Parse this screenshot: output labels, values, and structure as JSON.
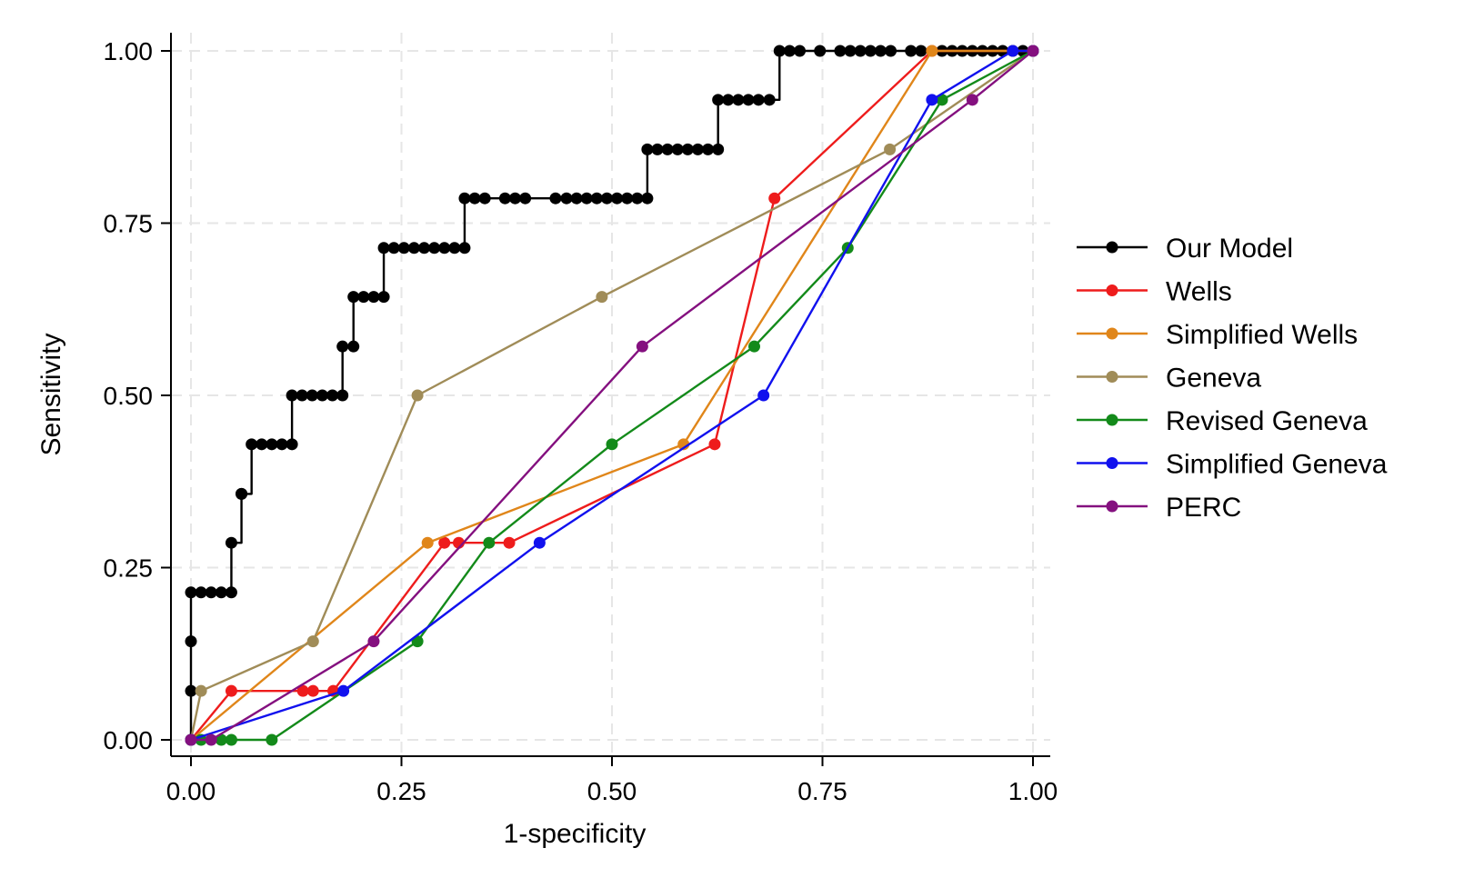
{
  "chart_data": {
    "type": "line",
    "xlabel": "1-specificity",
    "ylabel": "Sensitivity",
    "xlim": [
      0,
      1
    ],
    "ylim": [
      0,
      1
    ],
    "xticks": [
      "0.00",
      "0.25",
      "0.50",
      "0.75",
      "1.00"
    ],
    "yticks": [
      "0.00",
      "0.25",
      "0.50",
      "0.75",
      "1.00"
    ],
    "grid": true,
    "legend_position": "right",
    "series": [
      {
        "name": "Our Model",
        "color": "#000000",
        "step": true,
        "x": [
          0,
          0,
          0,
          0,
          0.012,
          0.024,
          0.036,
          0.048,
          0.048,
          0.06,
          0.06,
          0.072,
          0.084,
          0.096,
          0.108,
          0.12,
          0.12,
          0.132,
          0.144,
          0.156,
          0.168,
          0.18,
          0.18,
          0.193,
          0.193,
          0.205,
          0.217,
          0.229,
          0.229,
          0.241,
          0.253,
          0.265,
          0.277,
          0.289,
          0.301,
          0.313,
          0.325,
          0.325,
          0.337,
          0.349,
          0.373,
          0.385,
          0.397,
          0.433,
          0.446,
          0.458,
          0.47,
          0.482,
          0.494,
          0.506,
          0.518,
          0.53,
          0.542,
          0.542,
          0.554,
          0.566,
          0.578,
          0.59,
          0.602,
          0.614,
          0.626,
          0.626,
          0.638,
          0.65,
          0.662,
          0.674,
          0.687,
          0.699,
          0.711,
          0.723,
          0.747,
          0.771,
          0.783,
          0.795,
          0.807,
          0.819,
          0.831,
          0.855,
          0.867,
          0.892,
          0.904,
          0.916,
          0.928,
          0.94,
          0.952,
          0.964,
          0.976,
          0.988,
          1
        ],
        "y": [
          0,
          0.071,
          0.143,
          0.214,
          0.214,
          0.214,
          0.214,
          0.214,
          0.286,
          0.357,
          0.357,
          0.429,
          0.429,
          0.429,
          0.429,
          0.429,
          0.5,
          0.5,
          0.5,
          0.5,
          0.5,
          0.5,
          0.571,
          0.571,
          0.643,
          0.643,
          0.643,
          0.643,
          0.714,
          0.714,
          0.714,
          0.714,
          0.714,
          0.714,
          0.714,
          0.714,
          0.714,
          0.786,
          0.786,
          0.786,
          0.786,
          0.786,
          0.786,
          0.786,
          0.786,
          0.786,
          0.786,
          0.786,
          0.786,
          0.786,
          0.786,
          0.786,
          0.786,
          0.857,
          0.857,
          0.857,
          0.857,
          0.857,
          0.857,
          0.857,
          0.857,
          0.929,
          0.929,
          0.929,
          0.929,
          0.929,
          0.929,
          1,
          1,
          1,
          1,
          1,
          1,
          1,
          1,
          1,
          1,
          1,
          1,
          1,
          1,
          1,
          1,
          1,
          1,
          1,
          1,
          1,
          1
        ]
      },
      {
        "name": "Wells",
        "color": "#ee1c1c",
        "x": [
          0,
          0.048,
          0.133,
          0.145,
          0.169,
          0.301,
          0.318,
          0.378,
          0.622,
          0.693,
          0.88,
          1
        ],
        "y": [
          0,
          0.071,
          0.071,
          0.071,
          0.071,
          0.286,
          0.286,
          0.286,
          0.429,
          0.786,
          1,
          1
        ]
      },
      {
        "name": "Simplified Wells",
        "color": "#e0861a",
        "x": [
          0,
          0.281,
          0.585,
          0.88,
          1
        ],
        "y": [
          0,
          0.286,
          0.429,
          1,
          1
        ]
      },
      {
        "name": "Geneva",
        "color": "#a08c58",
        "x": [
          0,
          0.012,
          0.145,
          0.269,
          0.488,
          0.83,
          1
        ],
        "y": [
          0,
          0.071,
          0.143,
          0.5,
          0.643,
          0.857,
          1
        ]
      },
      {
        "name": "Revised Geneva",
        "color": "#138a1a",
        "x": [
          0,
          0.012,
          0.036,
          0.048,
          0.096,
          0.269,
          0.354,
          0.5,
          0.669,
          0.78,
          0.892,
          1
        ],
        "y": [
          0,
          0,
          0,
          0,
          0,
          0.143,
          0.286,
          0.429,
          0.571,
          0.714,
          0.929,
          1
        ]
      },
      {
        "name": "Simplified Geneva",
        "color": "#1111ee",
        "x": [
          0,
          0.181,
          0.414,
          0.68,
          0.88,
          0.976,
          1
        ],
        "y": [
          0,
          0.071,
          0.286,
          0.5,
          0.929,
          1,
          1
        ]
      },
      {
        "name": "PERC",
        "color": "#84107f",
        "x": [
          0,
          0.024,
          0.217,
          0.536,
          0.928,
          1
        ],
        "y": [
          0,
          0,
          0.143,
          0.571,
          0.929,
          1
        ]
      }
    ]
  }
}
